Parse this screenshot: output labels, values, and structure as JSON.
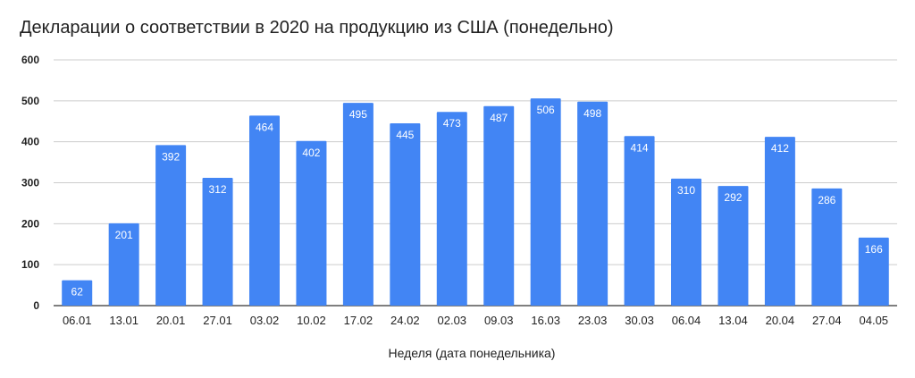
{
  "chart_data": {
    "type": "bar",
    "title": "Декларации о соответствии в 2020 на продукцию из США (понедельно)",
    "xlabel": "Неделя (дата понедельника)",
    "ylabel": "",
    "categories": [
      "06.01",
      "13.01",
      "20.01",
      "27.01",
      "03.02",
      "10.02",
      "17.02",
      "24.02",
      "02.03",
      "09.03",
      "16.03",
      "23.03",
      "30.03",
      "06.04",
      "13.04",
      "20.04",
      "27.04",
      "04.05"
    ],
    "values": [
      62,
      201,
      392,
      312,
      464,
      402,
      495,
      445,
      473,
      487,
      506,
      498,
      414,
      310,
      292,
      412,
      286,
      166
    ],
    "ylim": [
      0,
      600
    ],
    "yticks": [
      0,
      100,
      200,
      300,
      400,
      500,
      600
    ],
    "grid": true,
    "data_labels": true,
    "bar_color": "#4285f4",
    "legend": "none"
  }
}
